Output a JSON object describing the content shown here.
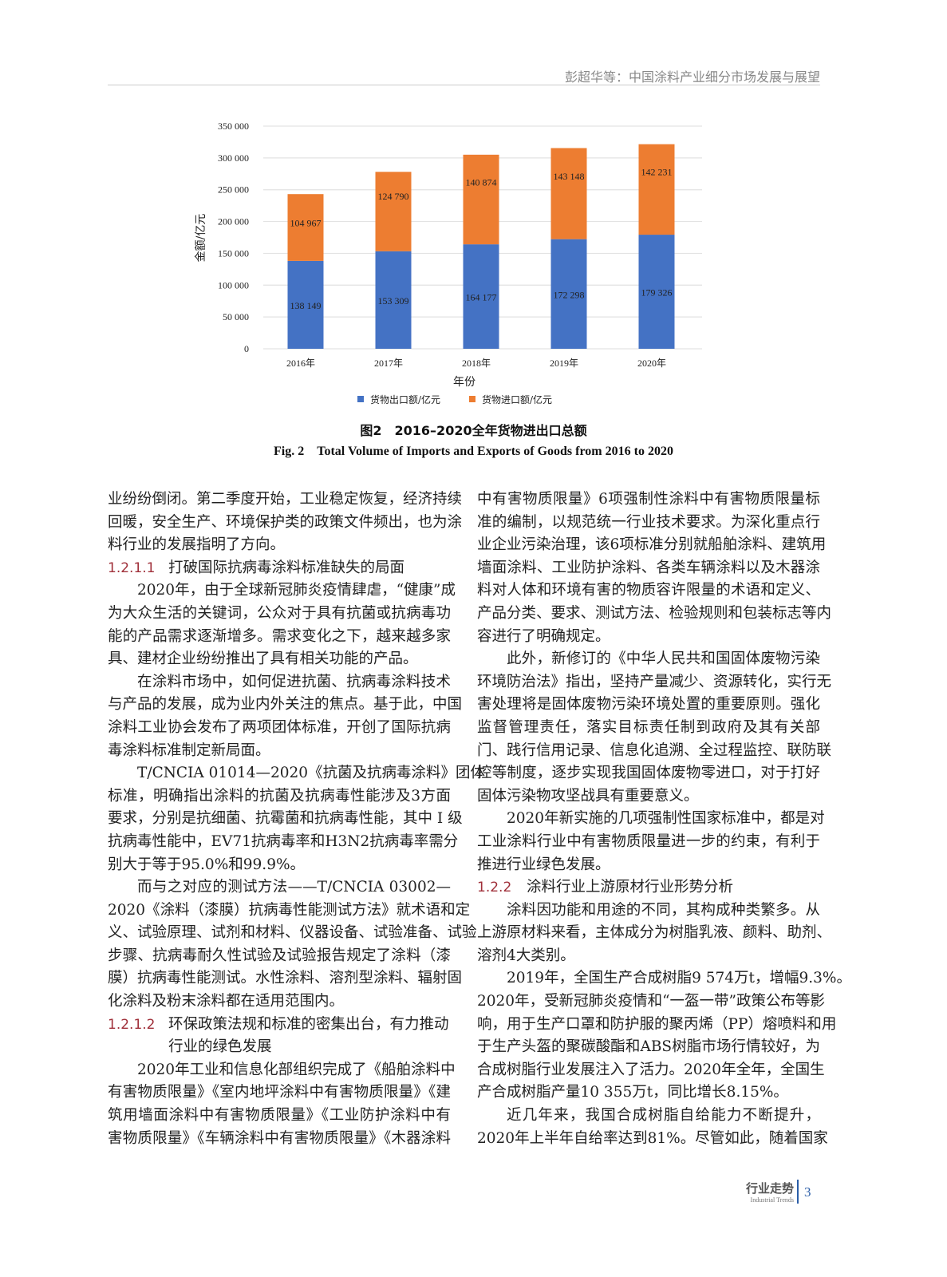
{
  "header": {
    "running_title": "彭超华等：中国涂料产业细分市场发展与展望"
  },
  "chart_data": {
    "type": "bar",
    "stacked": true,
    "categories": [
      "2016年",
      "2017年",
      "2018年",
      "2019年",
      "2020年"
    ],
    "series": [
      {
        "name": "货物出口额/亿元",
        "color": "#4472c4",
        "values": [
          138149,
          153309,
          164177,
          172298,
          179326
        ],
        "labels": [
          "138 149",
          "153 309",
          "164 177",
          "172 298",
          "179 326"
        ]
      },
      {
        "name": "货物进口额/亿元",
        "color": "#ed7d31",
        "values": [
          104967,
          124790,
          140874,
          143148,
          142231
        ],
        "labels": [
          "104 967",
          "124 790",
          "140 874",
          "143 148",
          "142 231"
        ]
      }
    ],
    "xlabel": "年份",
    "ylabel": "金额/亿元",
    "ylim": [
      0,
      350000
    ],
    "yticks": [
      0,
      50000,
      100000,
      150000,
      200000,
      250000,
      300000,
      350000
    ],
    "ytick_labels": [
      "0",
      "50 000",
      "100 000",
      "150 000",
      "200 000",
      "250 000",
      "300 000",
      "350 000"
    ],
    "grid": true,
    "legend": "bottom"
  },
  "figure": {
    "caption_cn": "图2　2016–2020全年货物进出口总额",
    "caption_en": "Fig. 2　Total Volume of Imports and Exports of Goods from 2016 to 2020"
  },
  "left_column": [
    {
      "type": "p",
      "indent": false,
      "lines": [
        "业纷纷倒闭。第二季度开始，工业稳定恢复，经济持续",
        "回暖，安全生产、环境保护类的政策文件频出，也为涂",
        "料行业的发展指明了方向。"
      ]
    },
    {
      "type": "h",
      "num": "1.2.1.1",
      "lines": [
        "打破国际抗病毒涂料标准缺失的局面"
      ]
    },
    {
      "type": "p",
      "indent": true,
      "lines": [
        "2020年，由于全球新冠肺炎疫情肆虐，“健康”成",
        "为大众生活的关键词，公众对于具有抗菌或抗病毒功",
        "能的产品需求逐渐增多。需求变化之下，越来越多家",
        "具、建材企业纷纷推出了具有相关功能的产品。"
      ]
    },
    {
      "type": "p",
      "indent": true,
      "lines": [
        "在涂料市场中，如何促进抗菌、抗病毒涂料技术",
        "与产品的发展，成为业内外关注的焦点。基于此，中国",
        "涂料工业协会发布了两项团体标准，开创了国际抗病",
        "毒涂料标准制定新局面。"
      ]
    },
    {
      "type": "p",
      "indent": true,
      "lines": [
        "T/CNCIA 01014—2020《抗菌及抗病毒涂料》团体",
        "标准，明确指出涂料的抗菌及抗病毒性能涉及3方面",
        "要求，分别是抗细菌、抗霉菌和抗病毒性能，其中 Ⅰ 级",
        "抗病毒性能中，EV71抗病毒率和H3N2抗病毒率需分",
        "别大于等于95.0%和99.9%。"
      ]
    },
    {
      "type": "p",
      "indent": true,
      "lines": [
        "而与之对应的测试方法——T/CNCIA 03002—",
        "2020《涂料（漆膜）抗病毒性能测试方法》就术语和定",
        "义、试验原理、试剂和材料、仪器设备、试验准备、试验",
        "步骤、抗病毒耐久性试验及试验报告规定了涂料（漆",
        "膜）抗病毒性能测试。水性涂料、溶剂型涂料、辐射固",
        "化涂料及粉末涂料都在适用范围内。"
      ]
    },
    {
      "type": "h",
      "num": "1.2.1.2",
      "lines": [
        "环保政策法规和标准的密集出台，有力推动",
        "行业的绿色发展"
      ]
    },
    {
      "type": "p",
      "indent": true,
      "cont": true,
      "lines": [
        "2020年工业和信息化部组织完成了《船舶涂料中",
        "有害物质限量》《室内地坪涂料中有害物质限量》《建",
        "筑用墙面涂料中有害物质限量》《工业防护涂料中有",
        "害物质限量》《车辆涂料中有害物质限量》《木器涂料"
      ]
    }
  ],
  "right_column": [
    {
      "type": "p",
      "indent": false,
      "lines": [
        "中有害物质限量》6项强制性涂料中有害物质限量标",
        "准的编制，以规范统一行业技术要求。为深化重点行",
        "业企业污染治理，该6项标准分别就船舶涂料、建筑用",
        "墙面涂料、工业防护涂料、各类车辆涂料以及木器涂",
        "料对人体和环境有害的物质容许限量的术语和定义、",
        "产品分类、要求、测试方法、检验规则和包装标志等内",
        "容进行了明确规定。"
      ]
    },
    {
      "type": "p",
      "indent": true,
      "lines": [
        "此外，新修订的《中华人民共和国固体废物污染",
        "环境防治法》指出，坚持产量减少、资源转化，实行无",
        "害处理将是固体废物污染环境处置的重要原则。强化",
        "监督管理责任，落实目标责任制到政府及其有关部",
        "门、践行信用记录、信息化追溯、全过程监控、联防联",
        "控等制度，逐步实现我国固体废物零进口，对于打好",
        "固体污染物攻坚战具有重要意义。"
      ]
    },
    {
      "type": "p",
      "indent": true,
      "lines": [
        "2020年新实施的几项强制性国家标准中，都是对",
        "工业涂料行业中有害物质限量进一步的约束，有利于",
        "推进行业绿色发展。"
      ]
    },
    {
      "type": "h",
      "num": "1.2.2",
      "lines": [
        "涂料行业上游原材行业形势分析"
      ]
    },
    {
      "type": "p",
      "indent": true,
      "lines": [
        "涂料因功能和用途的不同，其构成种类繁多。从",
        "上游原材料来看，主体成分为树脂乳液、颜料、助剂、",
        "溶剂4大类别。"
      ]
    },
    {
      "type": "p",
      "indent": true,
      "lines": [
        "2019年，全国生产合成树脂9 574万t，增幅9.3%。",
        "2020年，受新冠肺炎疫情和“一盔一带”政策公布等影",
        "响，用于生产口罩和防护服的聚丙烯（PP）熔喷料和用",
        "于生产头盔的聚碳酸酯和ABS树脂市场行情较好，为",
        "合成树脂行业发展注入了活力。2020年全年，全国生",
        "产合成树脂产量10 355万t，同比增长8.15%。"
      ]
    },
    {
      "type": "p",
      "indent": true,
      "cont": true,
      "lines": [
        "近几年来，我国合成树脂自给能力不断提升，",
        "2020年上半年自给率达到81%。尽管如此，随着国家"
      ]
    }
  ],
  "footer": {
    "section_cn": "行业走势",
    "section_en": "Industrial Trends",
    "page_number": "3"
  }
}
